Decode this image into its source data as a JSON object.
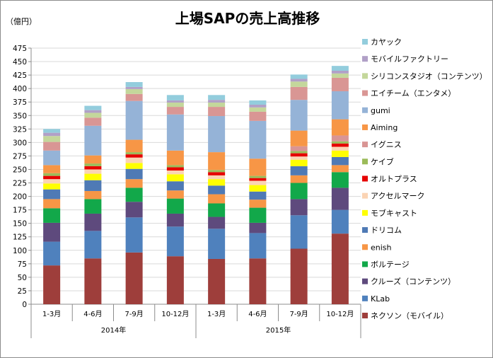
{
  "chart_data": {
    "type": "bar",
    "stacked": true,
    "title": "上場SAPの売上高推移",
    "unit_label": "（億円）",
    "ylim": [
      0,
      475
    ],
    "yticks": [
      0,
      25,
      50,
      75,
      100,
      125,
      150,
      175,
      200,
      225,
      250,
      275,
      300,
      325,
      350,
      375,
      400,
      425,
      450,
      475
    ],
    "grid": true,
    "legend_position": "right",
    "categories": [
      "1-3月",
      "4-6月",
      "7-9月",
      "10-12月",
      "1-3月",
      "4-6月",
      "7-9月",
      "10-12月"
    ],
    "groups": [
      {
        "label": "2014年",
        "span": 4
      },
      {
        "label": "2015年",
        "span": 4
      }
    ],
    "series": [
      {
        "name": "ネクソン（モバイル）",
        "color": "#9e3e3b",
        "values": [
          72,
          85,
          96,
          89,
          84,
          85,
          103,
          131
        ]
      },
      {
        "name": "KLab",
        "color": "#4f81bd",
        "values": [
          44,
          51,
          65,
          55,
          56,
          47,
          62,
          44
        ]
      },
      {
        "name": "クルーズ（コンテンツ）",
        "color": "#5e4a7d",
        "values": [
          35,
          32,
          29,
          24,
          22,
          19,
          30,
          41
        ]
      },
      {
        "name": "ボルテージ",
        "color": "#12a84a",
        "values": [
          27,
          27,
          26,
          28,
          25,
          28,
          30,
          29
        ]
      },
      {
        "name": "enish",
        "color": "#f79646",
        "values": [
          17,
          15,
          16,
          15,
          17,
          15,
          14,
          13
        ]
      },
      {
        "name": "ドリコム",
        "color": "#4f7ab5",
        "values": [
          18,
          20,
          19,
          17,
          16,
          15,
          17,
          15
        ]
      },
      {
        "name": "モブキャスト",
        "color": "#ffff00",
        "values": [
          11,
          12,
          11,
          13,
          12,
          12,
          12,
          12
        ]
      },
      {
        "name": "アクセルマーク",
        "color": "#fbd4b4",
        "values": [
          8,
          8,
          10,
          7,
          7,
          8,
          6,
          7
        ]
      },
      {
        "name": "オルトプラス",
        "color": "#e60000",
        "values": [
          6,
          6,
          6,
          6,
          6,
          5,
          6,
          6
        ]
      },
      {
        "name": "ケイブ",
        "color": "#9bbb59",
        "values": [
          5,
          5,
          4,
          4,
          4,
          4,
          4,
          4
        ]
      },
      {
        "name": "イグニス",
        "color": "#d99594",
        "values": [
          0,
          0,
          0,
          0,
          0,
          0,
          9,
          11
        ]
      },
      {
        "name": "Aiming",
        "color": "#f79646",
        "values": [
          15,
          15,
          23,
          27,
          33,
          32,
          29,
          30
        ]
      },
      {
        "name": "gumi",
        "color": "#95b3d7",
        "values": [
          27,
          55,
          72,
          67,
          67,
          70,
          57,
          52
        ]
      },
      {
        "name": "エイチーム（エンタメ）",
        "color": "#d99694",
        "values": [
          16,
          15,
          13,
          14,
          17,
          17,
          24,
          25
        ]
      },
      {
        "name": "シリコンスタジオ（コンテンツ）",
        "color": "#c4d79b",
        "values": [
          11,
          9,
          9,
          8,
          8,
          8,
          10,
          8
        ]
      },
      {
        "name": "モバイルファクトリー",
        "color": "#b1a0c7",
        "values": [
          6,
          5,
          4,
          4,
          5,
          5,
          5,
          5
        ]
      },
      {
        "name": "カヤック",
        "color": "#93cddd",
        "values": [
          7,
          8,
          9,
          10,
          9,
          8,
          8,
          9
        ]
      }
    ]
  }
}
